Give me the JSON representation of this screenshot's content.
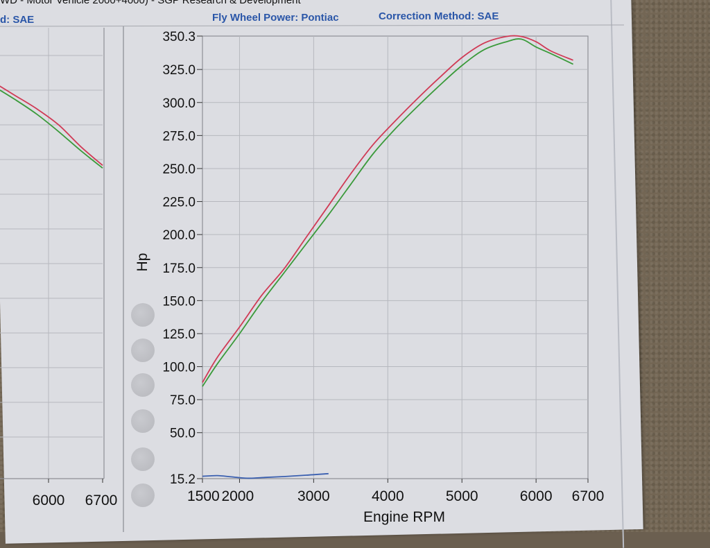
{
  "header": {
    "top_line": "WD - Motor Vehicle 2000+4000) - SGP Research & Development",
    "left_fragment": "d: SAE",
    "flywheel": "Fly Wheel Power: Pontiac",
    "correction": "Correction Method: SAE"
  },
  "colors": {
    "red_series": "#d03a55",
    "green_series": "#3a9a3a",
    "blue_series": "#3a5fb0"
  },
  "chart_data": [
    {
      "type": "line",
      "ylabel": "Hp",
      "xlabel": "Engine RPM",
      "ylim": [
        15.2,
        350.3
      ],
      "y_ticks": [
        "350.3",
        "325.0",
        "300.0",
        "275.0",
        "250.0",
        "225.0",
        "200.0",
        "175.0",
        "150.0",
        "125.0",
        "100.0",
        "75.0",
        "50.0",
        "15.2"
      ],
      "x_ticks": [
        "1500",
        "2000",
        "3000",
        "4000",
        "5000",
        "6000",
        "6700"
      ],
      "xlim": [
        1500,
        6700
      ],
      "series": [
        {
          "color": "red",
          "x": [
            1500,
            1700,
            2000,
            2300,
            2600,
            2900,
            3200,
            3500,
            3800,
            4100,
            4400,
            4700,
            5000,
            5300,
            5600,
            5800,
            6000,
            6200,
            6500
          ],
          "y": [
            88,
            107,
            130,
            154,
            174,
            198,
            222,
            246,
            268,
            286,
            303,
            319,
            334,
            345,
            350,
            350,
            346,
            339,
            332
          ]
        },
        {
          "color": "green",
          "x": [
            1500,
            1700,
            2000,
            2300,
            2600,
            2900,
            3200,
            3500,
            3800,
            4100,
            4400,
            4700,
            5000,
            5300,
            5600,
            5800,
            6000,
            6200,
            6500
          ],
          "y": [
            85,
            102,
            125,
            149,
            171,
            193,
            215,
            238,
            261,
            280,
            297,
            313,
            328,
            340,
            346,
            348,
            342,
            337,
            329
          ]
        },
        {
          "color": "blue",
          "x": [
            1500,
            1700,
            1900,
            2100,
            2300,
            2600,
            2900,
            3200
          ],
          "y": [
            17,
            17.5,
            16.5,
            15.5,
            16,
            16.8,
            17.8,
            19
          ]
        }
      ]
    },
    {
      "type": "line",
      "x_ticks": [
        "6000",
        "6700"
      ],
      "xlim": [
        5200,
        6700
      ],
      "series": [
        {
          "color": "red",
          "x": [
            5200,
            5500,
            5800,
            6100,
            6400,
            6700
          ],
          "y": [
            310,
            300,
            290,
            278,
            262,
            248
          ]
        },
        {
          "color": "green",
          "x": [
            5200,
            5500,
            5800,
            6100,
            6400,
            6700
          ],
          "y": [
            307,
            297,
            286,
            273,
            259,
            246
          ]
        }
      ]
    }
  ]
}
